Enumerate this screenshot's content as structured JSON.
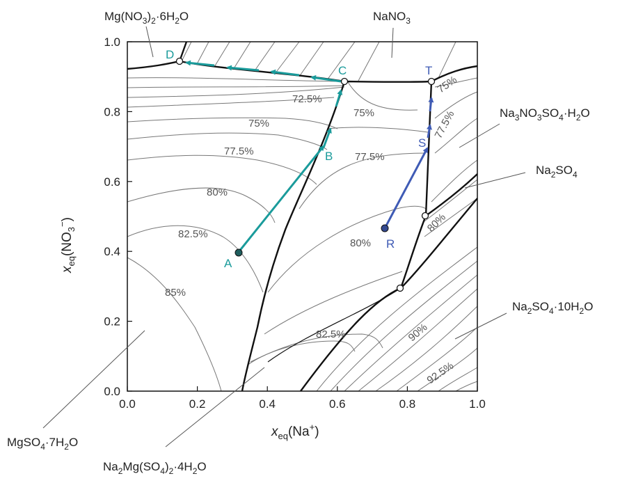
{
  "chart_data": {
    "type": "diagram",
    "x_axis": {
      "label_main": "x",
      "label_sub": "eq",
      "label_rest": "(Na",
      "label_sup": "+",
      "label_end": ")",
      "range": [
        0,
        1
      ],
      "ticks": [
        "0.0",
        "0.2",
        "0.4",
        "0.6",
        "0.8",
        "1.0"
      ]
    },
    "y_axis": {
      "label_main": "x",
      "label_sub": "eq",
      "label_rest": "(NO",
      "label_sub2": "3",
      "label_sup": "−",
      "label_end": ")",
      "range": [
        0,
        1
      ],
      "ticks": [
        "0.0",
        "0.2",
        "0.4",
        "0.6",
        "0.8",
        "1.0"
      ]
    },
    "phases": {
      "mgno3": [
        "Mg(NO",
        "3",
        ")",
        "2",
        "·6H",
        "2",
        "O"
      ],
      "nano3": [
        "NaNO",
        "3"
      ],
      "na3no3so4": [
        "Na",
        "3",
        "NO",
        "3",
        "SO",
        "4",
        "·H",
        "2",
        "O"
      ],
      "na2so4": [
        "Na",
        "2",
        "SO",
        "4"
      ],
      "na2so4_10": [
        "Na",
        "2",
        "SO",
        "4",
        "·10H",
        "2",
        "O"
      ],
      "mgso4": [
        "MgSO",
        "4",
        "·7H",
        "2",
        "O"
      ],
      "bloedite": [
        "Na",
        "2",
        "Mg(SO",
        "4",
        ")",
        "2",
        "·4H",
        "2",
        "O"
      ]
    },
    "rh_labels": [
      "72.5%",
      "75%",
      "77.5%",
      "80%",
      "82.5%",
      "85%",
      "75%",
      "77.5%",
      "80%",
      "82.5%",
      "75%",
      "77.5%",
      "80%",
      "90%",
      "92.5%"
    ],
    "points": [
      {
        "name": "A",
        "x": 0.325,
        "y": 0.395
      },
      {
        "name": "B",
        "x": 0.565,
        "y": 0.71
      },
      {
        "name": "C",
        "x": 0.625,
        "y": 0.885
      },
      {
        "name": "D",
        "x": 0.155,
        "y": 0.94
      },
      {
        "name": "R",
        "x": 0.74,
        "y": 0.465
      },
      {
        "name": "S",
        "x": 0.86,
        "y": 0.7
      },
      {
        "name": "T",
        "x": 0.875,
        "y": 0.885
      }
    ],
    "colors": {
      "teal": "#1a9b9b",
      "blue": "#3f5bb5",
      "boundary": "#111111",
      "isoline": "#666666"
    }
  }
}
